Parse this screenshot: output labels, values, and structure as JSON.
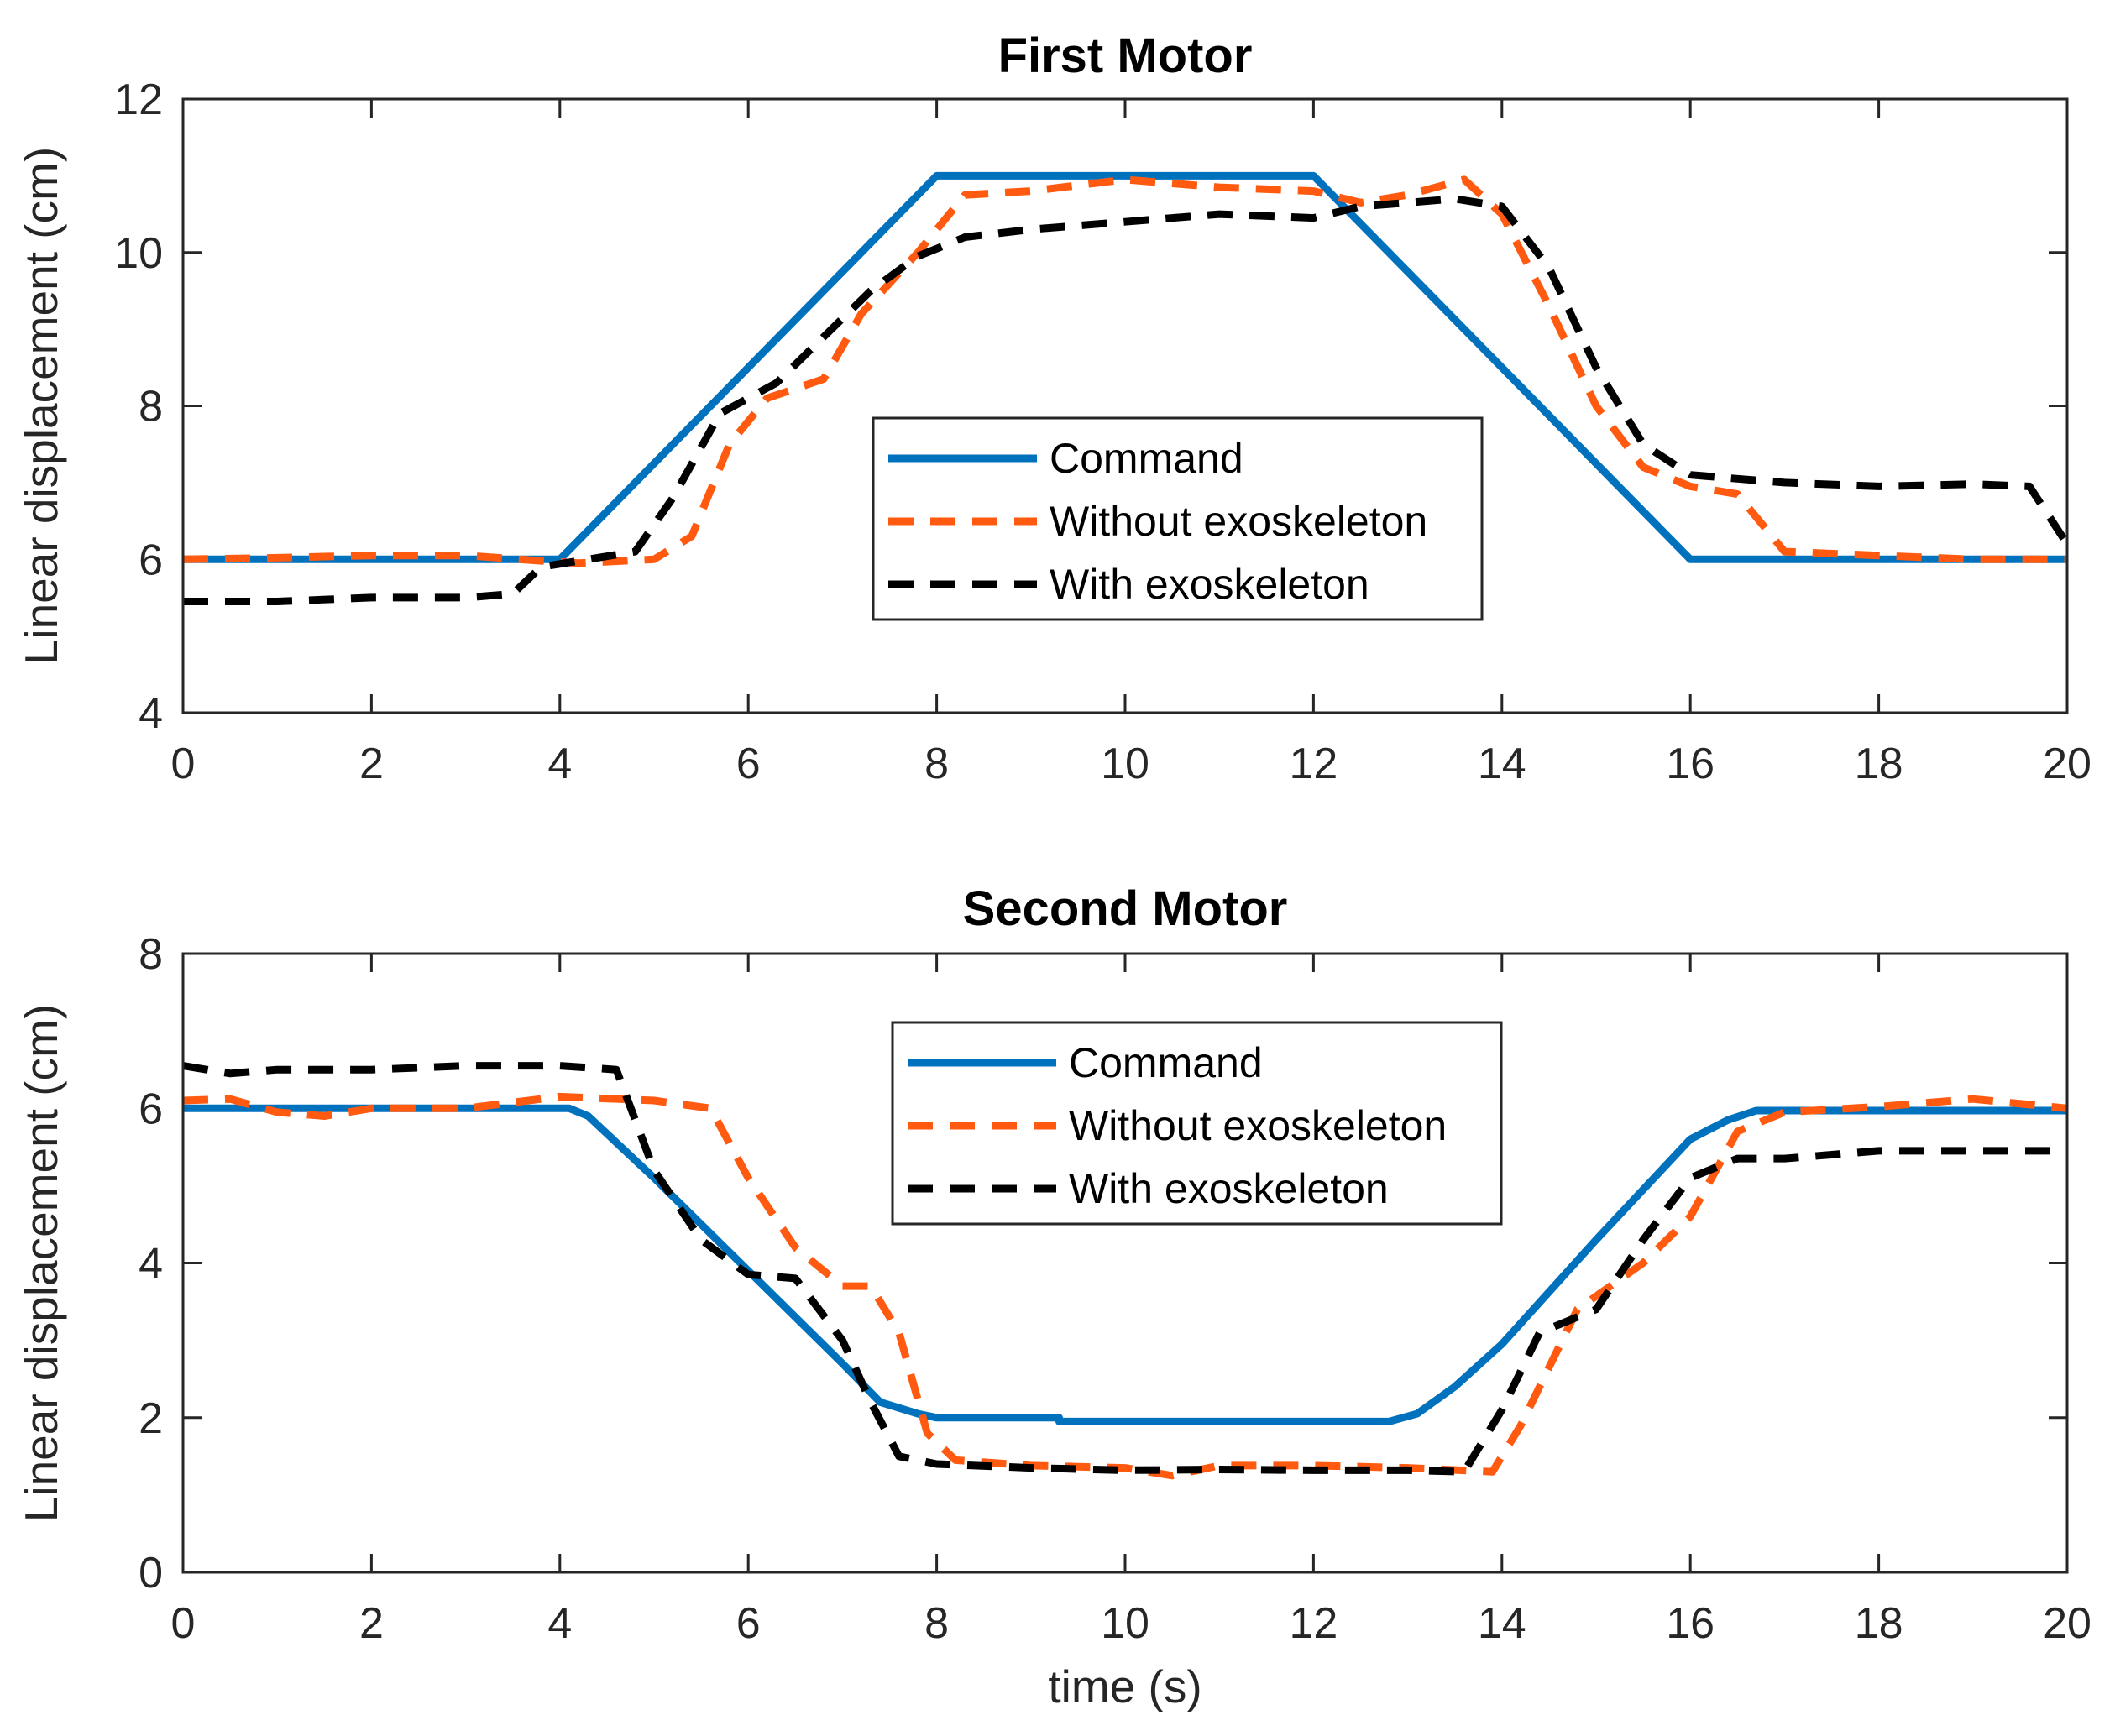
{
  "chart_data": [
    {
      "type": "line",
      "title": "First Motor",
      "xlabel": "",
      "ylabel": "Linear displacement (cm)",
      "xlim": [
        0,
        20
      ],
      "ylim": [
        4,
        12
      ],
      "xticks": [
        "0",
        "2",
        "4",
        "6",
        "8",
        "10",
        "12",
        "14",
        "16",
        "18",
        "20"
      ],
      "yticks": [
        "4",
        "6",
        "8",
        "10",
        "12"
      ],
      "legend_position": "center",
      "series": [
        {
          "name": "Command",
          "color": "#0072BD",
          "style": "solid",
          "x": [
            0,
            4,
            8,
            12,
            16,
            20
          ],
          "y": [
            6,
            6,
            11,
            11,
            6,
            6
          ]
        },
        {
          "name": "Without exoskeleton",
          "color": "#FF5A10",
          "style": "dashed",
          "x": [
            0,
            1,
            2,
            3,
            3.8,
            4.2,
            5,
            5.4,
            5.8,
            6.2,
            6.8,
            7.2,
            7.8,
            8.3,
            9,
            10,
            11,
            12,
            12.5,
            13,
            13.6,
            14,
            14.5,
            15,
            15.5,
            16,
            16.5,
            17,
            18,
            19,
            20
          ],
          "y": [
            6.0,
            6.02,
            6.05,
            6.05,
            5.98,
            5.95,
            6.0,
            6.3,
            7.5,
            8.1,
            8.35,
            9.2,
            10.0,
            10.75,
            10.8,
            10.95,
            10.85,
            10.8,
            10.65,
            10.75,
            10.95,
            10.5,
            9.3,
            8.0,
            7.2,
            6.95,
            6.85,
            6.1,
            6.05,
            6.0,
            6.0
          ]
        },
        {
          "name": "With exoskeleton",
          "color": "#000000",
          "style": "dashed",
          "x": [
            0,
            1,
            2,
            3,
            3.5,
            3.8,
            4.2,
            4.8,
            5.2,
            5.7,
            6.3,
            6.8,
            7.3,
            7.8,
            8.3,
            9,
            10,
            11,
            12,
            12.5,
            13,
            13.5,
            14,
            14.5,
            15,
            15.5,
            16,
            17,
            18,
            19,
            19.6,
            20
          ],
          "y": [
            5.45,
            5.45,
            5.5,
            5.5,
            5.55,
            5.9,
            5.98,
            6.1,
            6.8,
            7.9,
            8.3,
            8.9,
            9.5,
            9.95,
            10.2,
            10.3,
            10.4,
            10.5,
            10.45,
            10.6,
            10.65,
            10.7,
            10.6,
            9.8,
            8.5,
            7.5,
            7.1,
            7.0,
            6.95,
            6.98,
            6.95,
            6.2
          ]
        }
      ]
    },
    {
      "type": "line",
      "title": "Second Motor",
      "xlabel": "time (s)",
      "ylabel": "Linear displacement (cm)",
      "xlim": [
        0,
        20
      ],
      "ylim": [
        0,
        8
      ],
      "xticks": [
        "0",
        "2",
        "4",
        "6",
        "8",
        "10",
        "12",
        "14",
        "16",
        "18",
        "20"
      ],
      "yticks": [
        "0",
        "2",
        "4",
        "6",
        "8"
      ],
      "legend_position": "top-center",
      "series": [
        {
          "name": "Command",
          "color": "#0072BD",
          "style": "solid",
          "x": [
            0,
            4.1,
            4.3,
            5,
            6,
            7,
            7.4,
            7.8,
            8,
            9.3,
            9.3,
            12.8,
            13.1,
            13.5,
            14,
            15,
            16,
            16.4,
            16.7,
            20
          ],
          "y": [
            6,
            6,
            5.9,
            5.1,
            3.9,
            2.7,
            2.2,
            2.05,
            2.0,
            2.0,
            1.95,
            1.95,
            2.05,
            2.4,
            2.95,
            4.3,
            5.6,
            5.85,
            5.97,
            5.97
          ]
        },
        {
          "name": "Without exoskeleton",
          "color": "#FF5A10",
          "style": "dashed",
          "x": [
            0,
            0.5,
            1,
            1.5,
            2,
            3,
            4,
            5,
            5.6,
            6,
            6.5,
            7,
            7.3,
            7.6,
            7.9,
            8.2,
            9,
            10,
            10.5,
            11,
            12,
            13,
            13.9,
            14.2,
            14.8,
            15.5,
            16,
            16.5,
            17,
            18,
            19,
            20
          ],
          "y": [
            6.1,
            6.12,
            5.95,
            5.9,
            6.0,
            6.0,
            6.15,
            6.1,
            6.0,
            5.1,
            4.2,
            3.7,
            3.7,
            3.1,
            1.8,
            1.45,
            1.38,
            1.35,
            1.25,
            1.38,
            1.38,
            1.35,
            1.3,
            1.9,
            3.4,
            4.0,
            4.6,
            5.7,
            5.95,
            6.02,
            6.12,
            6.0
          ]
        },
        {
          "name": "With exoskeleton",
          "color": "#000000",
          "style": "dashed",
          "x": [
            0,
            0.5,
            1,
            2,
            3,
            4,
            4.6,
            5,
            5.5,
            6,
            6.5,
            7,
            7.3,
            7.6,
            8,
            9,
            10,
            11,
            12,
            13,
            13.6,
            14,
            14.4,
            15,
            15.5,
            16,
            16.5,
            17,
            18,
            19,
            20
          ],
          "y": [
            6.55,
            6.45,
            6.5,
            6.5,
            6.55,
            6.55,
            6.5,
            5.2,
            4.3,
            3.85,
            3.8,
            3.0,
            2.2,
            1.5,
            1.4,
            1.35,
            1.32,
            1.33,
            1.32,
            1.32,
            1.3,
            2.1,
            3.1,
            3.4,
            4.3,
            5.1,
            5.35,
            5.35,
            5.45,
            5.45,
            5.45
          ]
        }
      ]
    }
  ]
}
